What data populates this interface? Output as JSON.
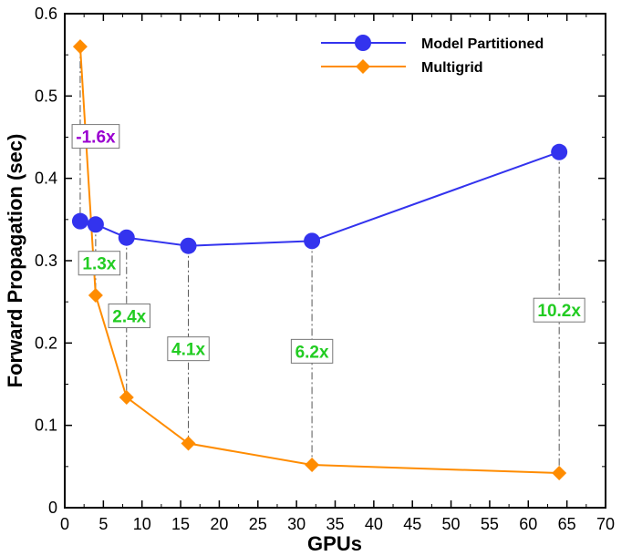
{
  "chart_data": {
    "type": "line",
    "xlabel": "GPUs",
    "ylabel": "Forward Propagation (sec)",
    "xlim": [
      0,
      70
    ],
    "ylim": [
      0,
      0.6
    ],
    "xticks": [
      "0",
      "5",
      "10",
      "15",
      "20",
      "25",
      "30",
      "35",
      "40",
      "45",
      "50",
      "55",
      "60",
      "65",
      "70"
    ],
    "yticks": [
      "0",
      "0.1",
      "0.2",
      "0.3",
      "0.4",
      "0.5",
      "0.6"
    ],
    "legend_position": "top-right",
    "series": [
      {
        "name": "Model Partitioned",
        "color": "#3333ee",
        "marker": "circle",
        "x": [
          2,
          4,
          8,
          16,
          32,
          64
        ],
        "y": [
          0.348,
          0.344,
          0.328,
          0.318,
          0.324,
          0.432
        ]
      },
      {
        "name": "Multigrid",
        "color": "#ff8c00",
        "marker": "diamond",
        "x": [
          2,
          4,
          8,
          16,
          32,
          64
        ],
        "y": [
          0.56,
          0.258,
          0.134,
          0.078,
          0.052,
          0.042
        ]
      }
    ],
    "annotations": [
      {
        "text": "-1.6x",
        "x": 2,
        "label_y": 0.451,
        "color": "#9a00d0"
      },
      {
        "text": "1.3x",
        "x": 4,
        "label_y": 0.297,
        "color": "#22cc22"
      },
      {
        "text": "2.4x",
        "x": 8,
        "label_y": 0.233,
        "color": "#22cc22"
      },
      {
        "text": "4.1x",
        "x": 16,
        "label_y": 0.193,
        "color": "#22cc22"
      },
      {
        "text": "6.2x",
        "x": 32,
        "label_y": 0.19,
        "color": "#22cc22"
      },
      {
        "text": "10.2x",
        "x": 64,
        "label_y": 0.24,
        "color": "#22cc22"
      }
    ]
  }
}
